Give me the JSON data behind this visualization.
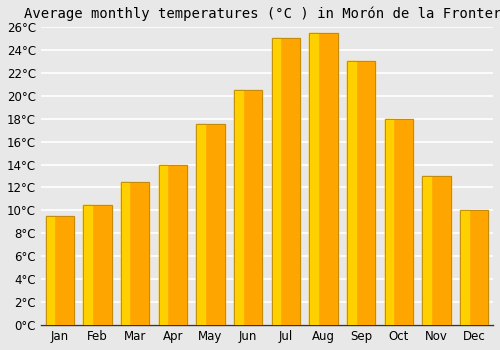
{
  "title": "Average monthly temperatures (°C ) in Morón de la Frontera",
  "months": [
    "Jan",
    "Feb",
    "Mar",
    "Apr",
    "May",
    "Jun",
    "Jul",
    "Aug",
    "Sep",
    "Oct",
    "Nov",
    "Dec"
  ],
  "values": [
    9.5,
    10.5,
    12.5,
    14.0,
    17.5,
    20.5,
    25.0,
    25.5,
    23.0,
    18.0,
    13.0,
    10.0
  ],
  "bar_color_main": "#FFA500",
  "bar_color_left": "#FFD000",
  "bar_edge_color": "#B8860B",
  "ylim": [
    0,
    26
  ],
  "yticks": [
    0,
    2,
    4,
    6,
    8,
    10,
    12,
    14,
    16,
    18,
    20,
    22,
    24,
    26
  ],
  "ytick_labels": [
    "0°C",
    "2°C",
    "4°C",
    "6°C",
    "8°C",
    "10°C",
    "12°C",
    "14°C",
    "16°C",
    "18°C",
    "20°C",
    "22°C",
    "24°C",
    "26°C"
  ],
  "background_color": "#e8e8e8",
  "plot_bg_color": "#e8e8e8",
  "grid_color": "#ffffff",
  "title_fontsize": 10,
  "tick_fontsize": 8.5,
  "bar_width": 0.75
}
